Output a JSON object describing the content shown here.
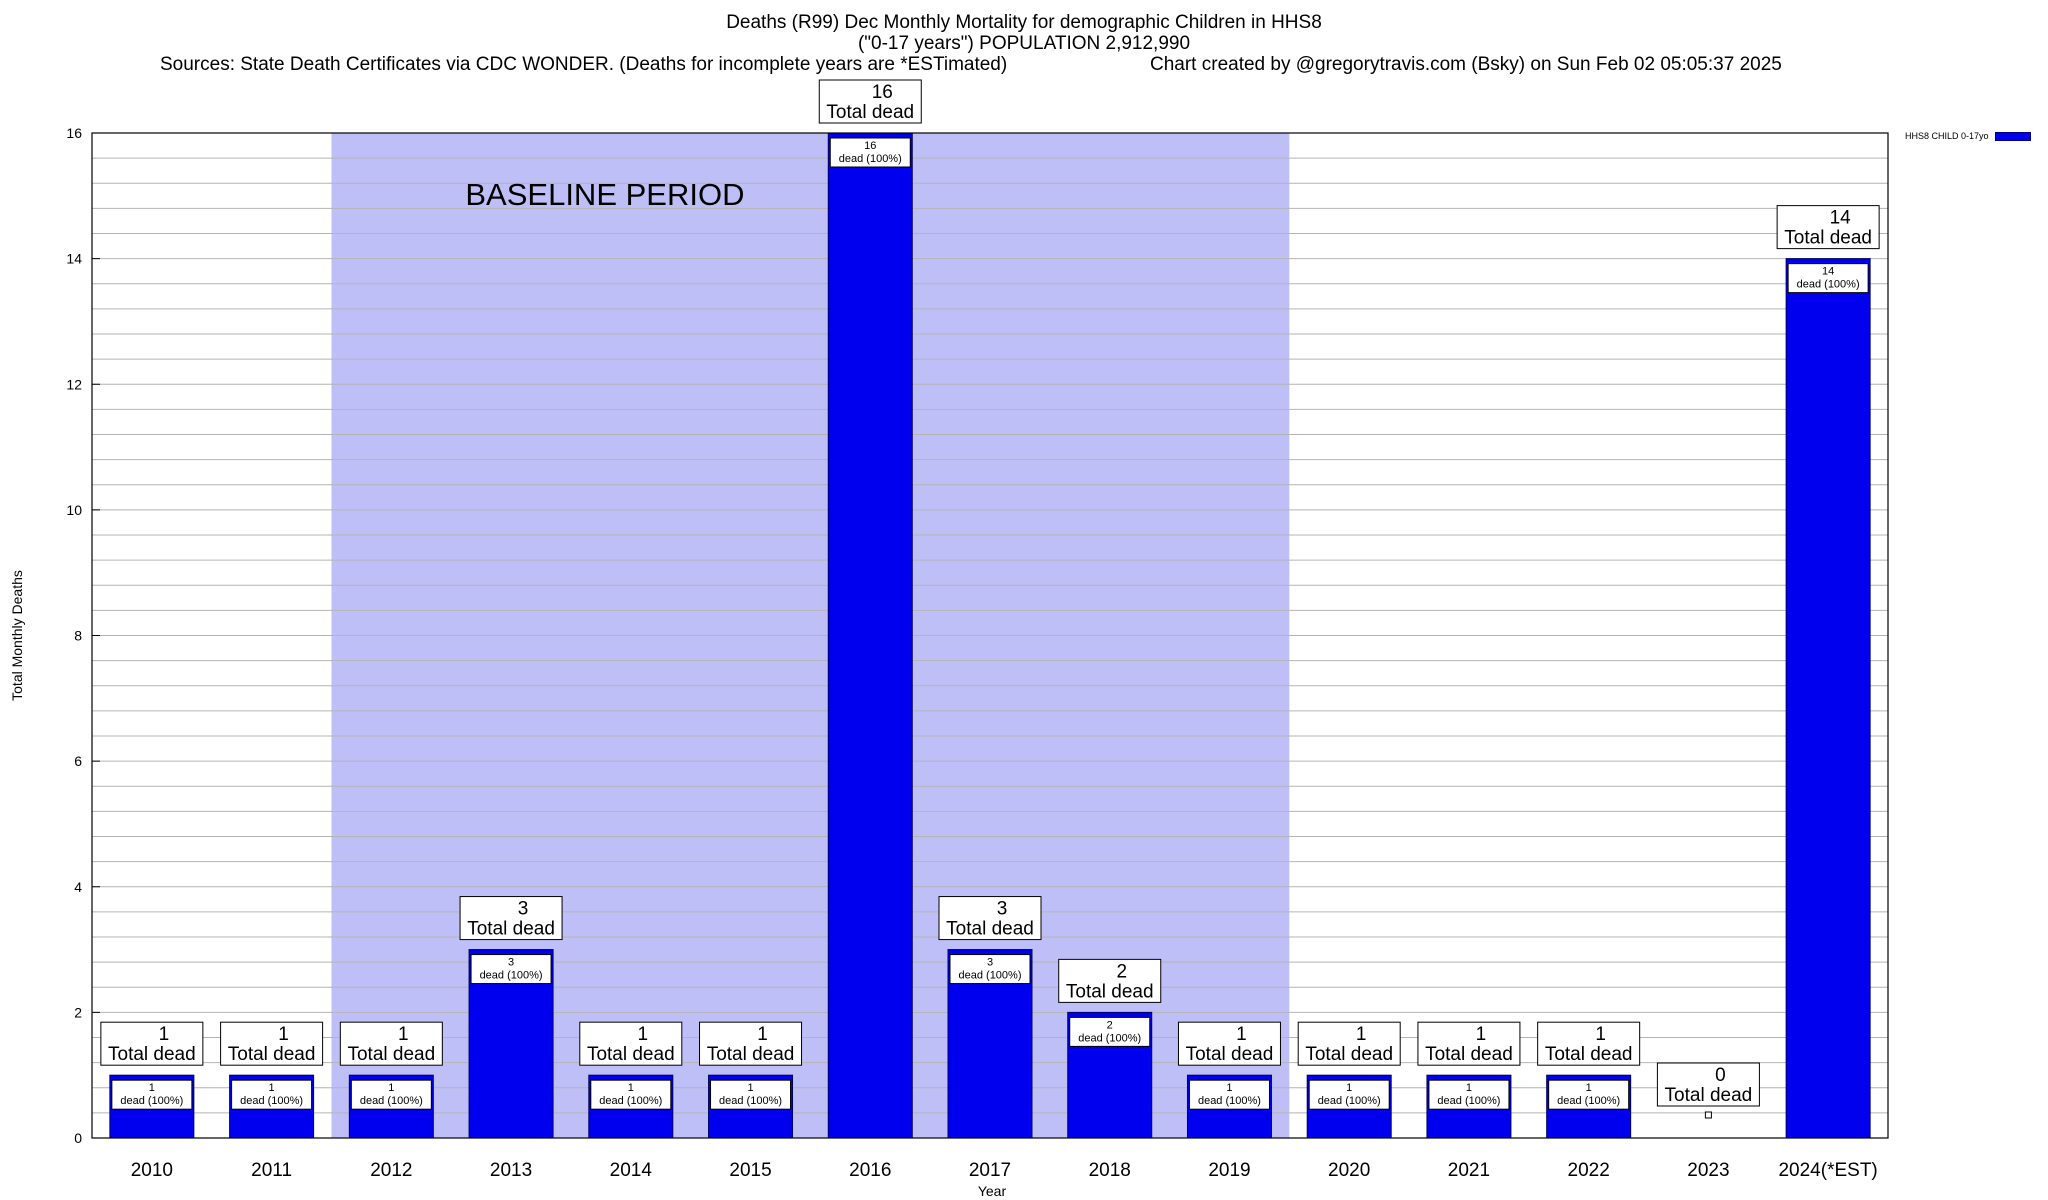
{
  "chart_data": {
    "type": "bar",
    "title": "Deaths (R99) Dec Monthly Mortality for demographic Children in HHS8",
    "subtitle": "(\"0-17 years\") POPULATION 2,912,990",
    "source": "Sources: State Death Certificates via CDC WONDER. (Deaths for incomplete years are *ESTimated)",
    "credit": "Chart created by @gregorytravis.com (Bsky) on Sun Feb 02 05:05:37 2025",
    "xlabel": "Year",
    "ylabel": "Total Monthly Deaths",
    "ylim": [
      0,
      16
    ],
    "yticks": [
      "0",
      "2",
      "4",
      "6",
      "8",
      "10",
      "12",
      "14",
      "16"
    ],
    "categories": [
      "2010",
      "2011",
      "2012",
      "2013",
      "2014",
      "2015",
      "2016",
      "2017",
      "2018",
      "2019",
      "2020",
      "2021",
      "2022",
      "2023",
      "2024(*EST)"
    ],
    "series": [
      {
        "name": "HHS8 CHILD 0-17yo",
        "values": [
          1,
          1,
          1,
          3,
          1,
          1,
          16,
          3,
          2,
          1,
          1,
          1,
          1,
          0,
          14
        ]
      }
    ],
    "total_label": "Total dead",
    "inner_label_suffix": "dead (100%)",
    "baseline": {
      "label": "BASELINE PERIOD",
      "from": "2012",
      "to": "2019"
    },
    "grid": true,
    "legend_position": "top-right",
    "colors": {
      "bar": "#0000ee",
      "baseline": "#bfbff8"
    }
  }
}
